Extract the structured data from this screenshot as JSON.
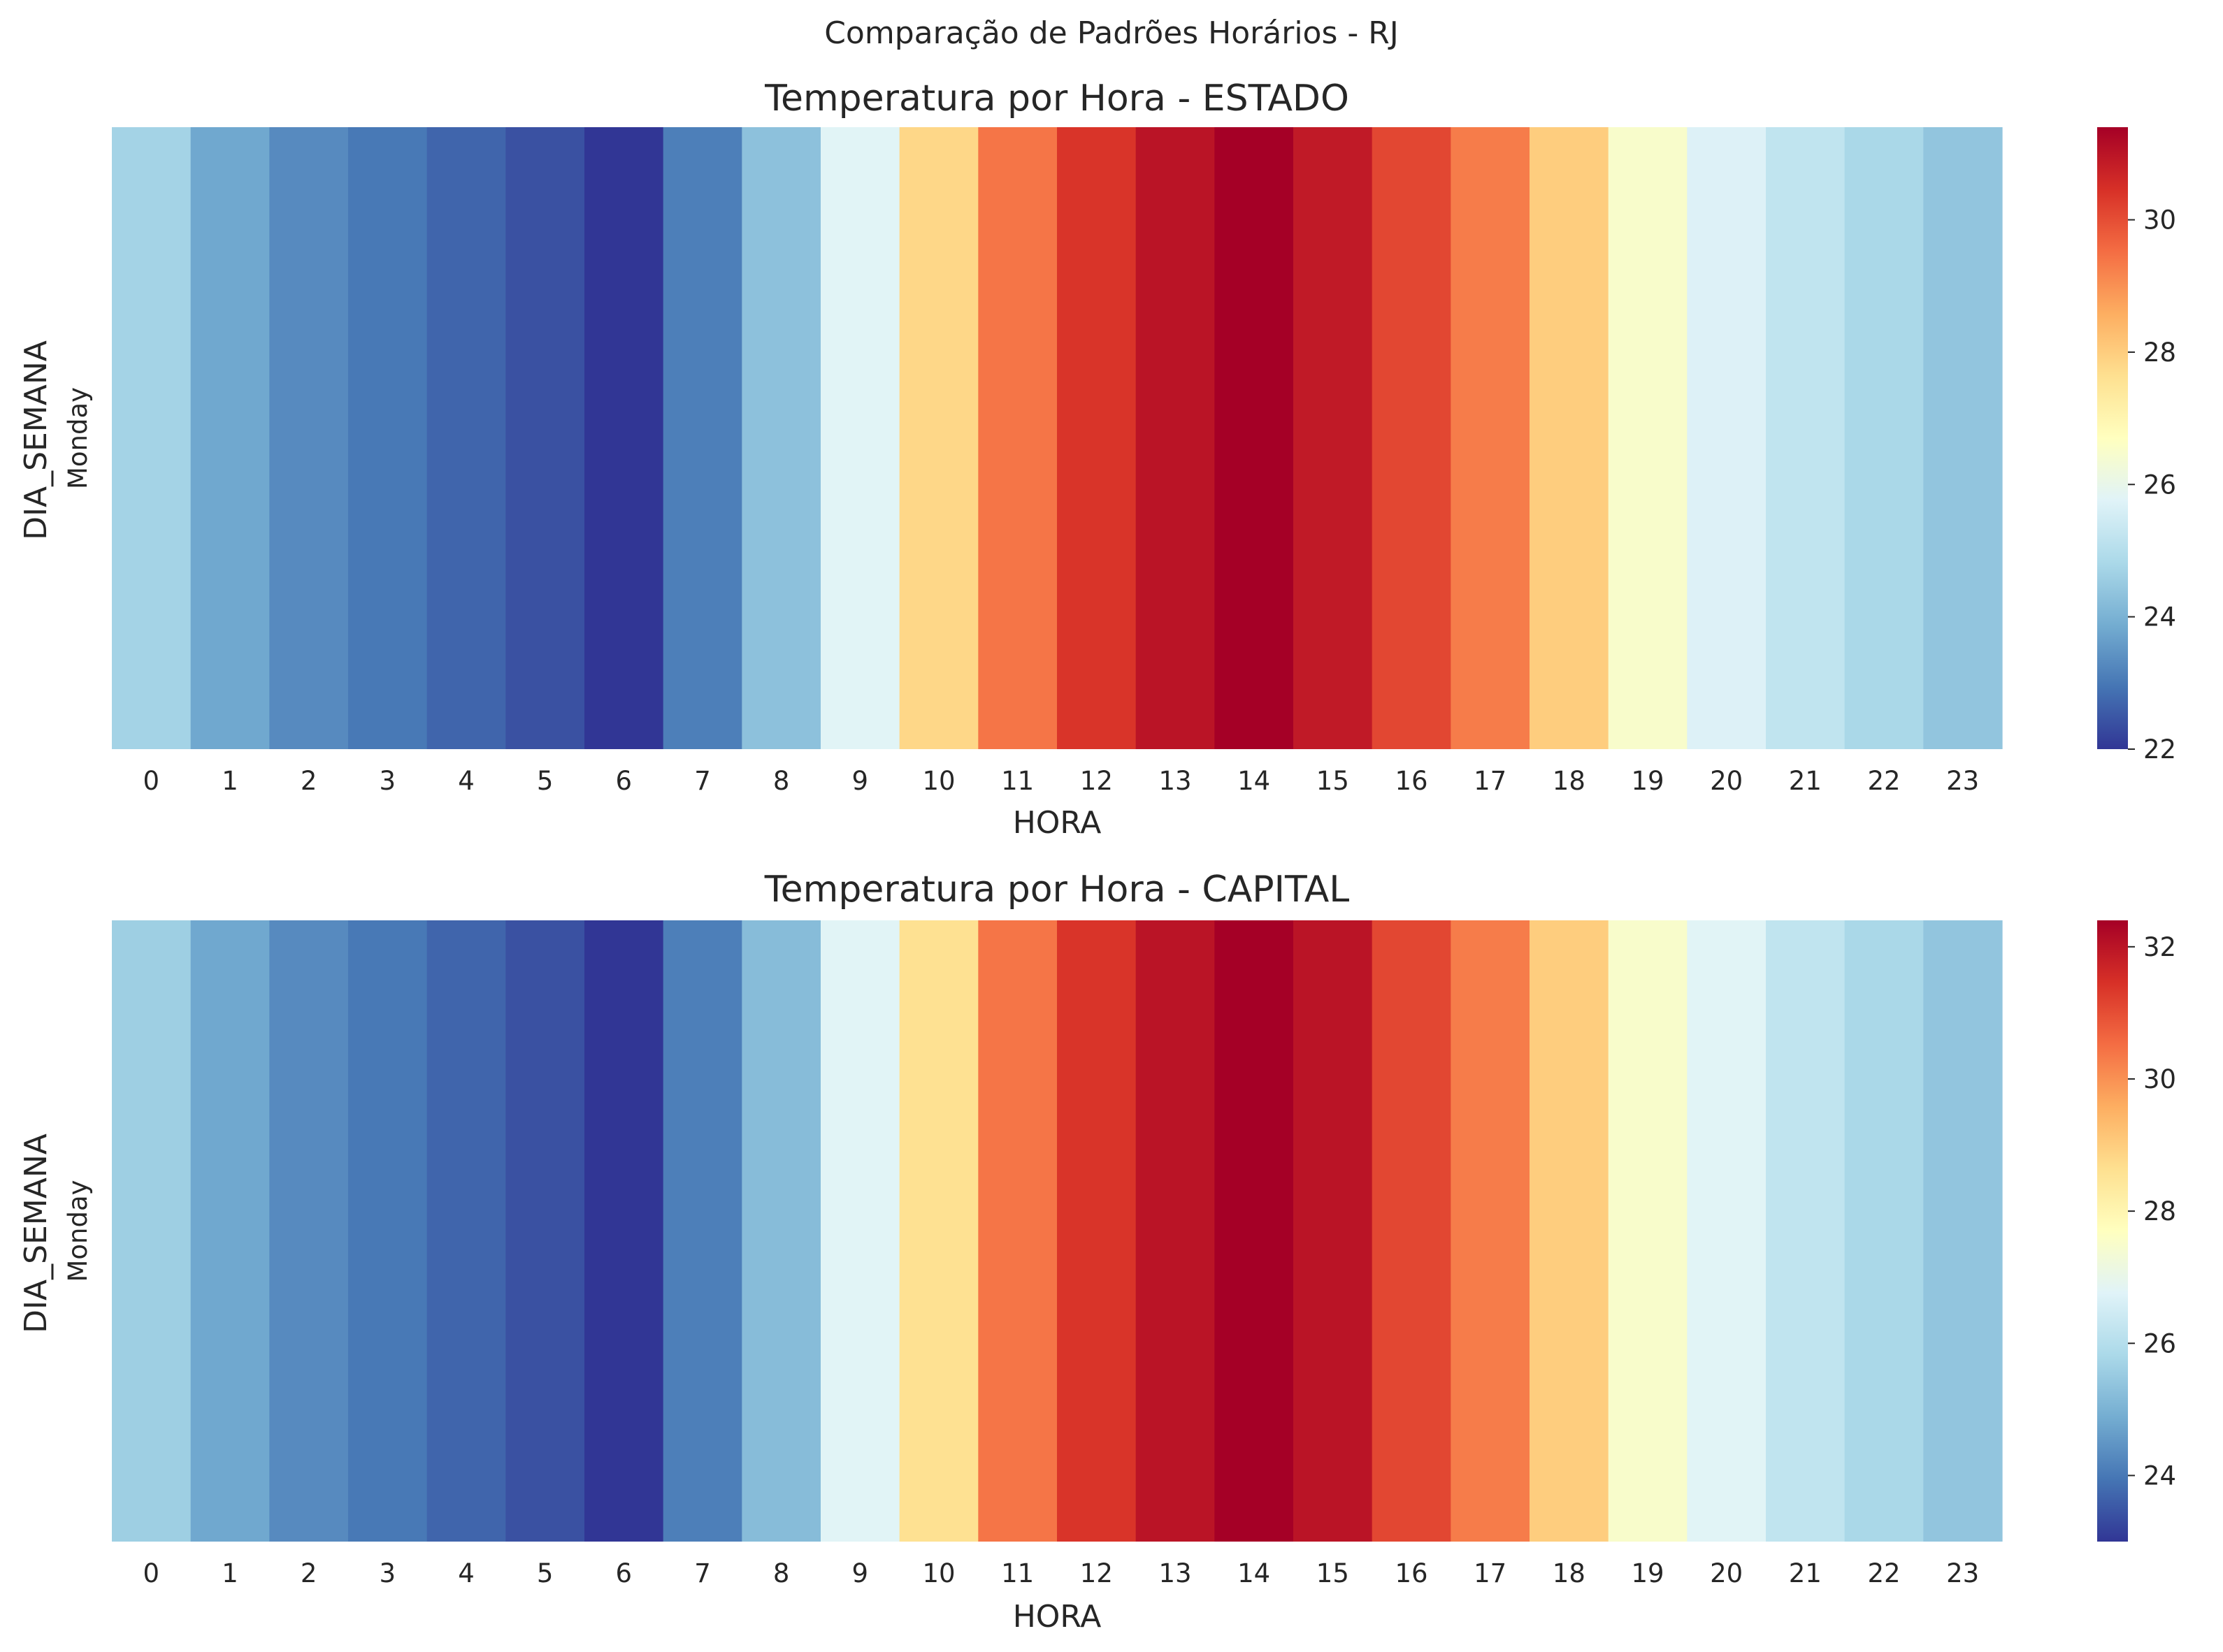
{
  "chart_data": {
    "suptitle": "Comparação de Padrões Horários - RJ",
    "colormap": "RdYlBu_r",
    "colormap_stops": [
      "#313695",
      "#4575b4",
      "#74add1",
      "#abd9e9",
      "#e0f3f8",
      "#ffffbf",
      "#fee090",
      "#fdae61",
      "#f46d43",
      "#d73027",
      "#a50026"
    ],
    "panels": [
      {
        "type": "heatmap",
        "title": "Temperatura por Hora - ESTADO",
        "xlabel": "HORA",
        "ylabel": "DIA_SEMANA",
        "x": [
          "0",
          "1",
          "2",
          "3",
          "4",
          "5",
          "6",
          "7",
          "8",
          "9",
          "10",
          "11",
          "12",
          "13",
          "14",
          "15",
          "16",
          "17",
          "18",
          "19",
          "20",
          "21",
          "22",
          "23"
        ],
        "y": [
          "Monday"
        ],
        "values": [
          [
            24.7,
            23.8,
            23.3,
            23.0,
            22.7,
            22.4,
            22.0,
            23.1,
            24.3,
            25.8,
            27.8,
            29.4,
            30.4,
            31.0,
            31.4,
            30.9,
            30.1,
            29.3,
            28.0,
            26.5,
            25.7,
            25.2,
            24.8,
            24.4
          ]
        ],
        "colorbar_ticks": [
          22,
          24,
          26,
          28,
          30
        ],
        "colorbar_range": [
          22.0,
          31.4
        ]
      },
      {
        "type": "heatmap",
        "title": "Temperatura por Hora - CAPITAL",
        "xlabel": "HORA",
        "ylabel": "DIA_SEMANA",
        "x": [
          "0",
          "1",
          "2",
          "3",
          "4",
          "5",
          "6",
          "7",
          "8",
          "9",
          "10",
          "11",
          "12",
          "13",
          "14",
          "15",
          "16",
          "17",
          "18",
          "19",
          "20",
          "21",
          "22",
          "23"
        ],
        "y": [
          "Monday"
        ],
        "values": [
          [
            25.6,
            24.8,
            24.3,
            24.0,
            23.7,
            23.4,
            23.0,
            24.1,
            25.2,
            26.8,
            28.6,
            30.4,
            31.4,
            32.0,
            32.4,
            32.0,
            31.1,
            30.3,
            29.0,
            27.5,
            26.8,
            26.2,
            25.8,
            25.4
          ]
        ],
        "colorbar_ticks": [
          24,
          26,
          28,
          30,
          32
        ],
        "colorbar_range": [
          23.0,
          32.4
        ]
      }
    ]
  }
}
